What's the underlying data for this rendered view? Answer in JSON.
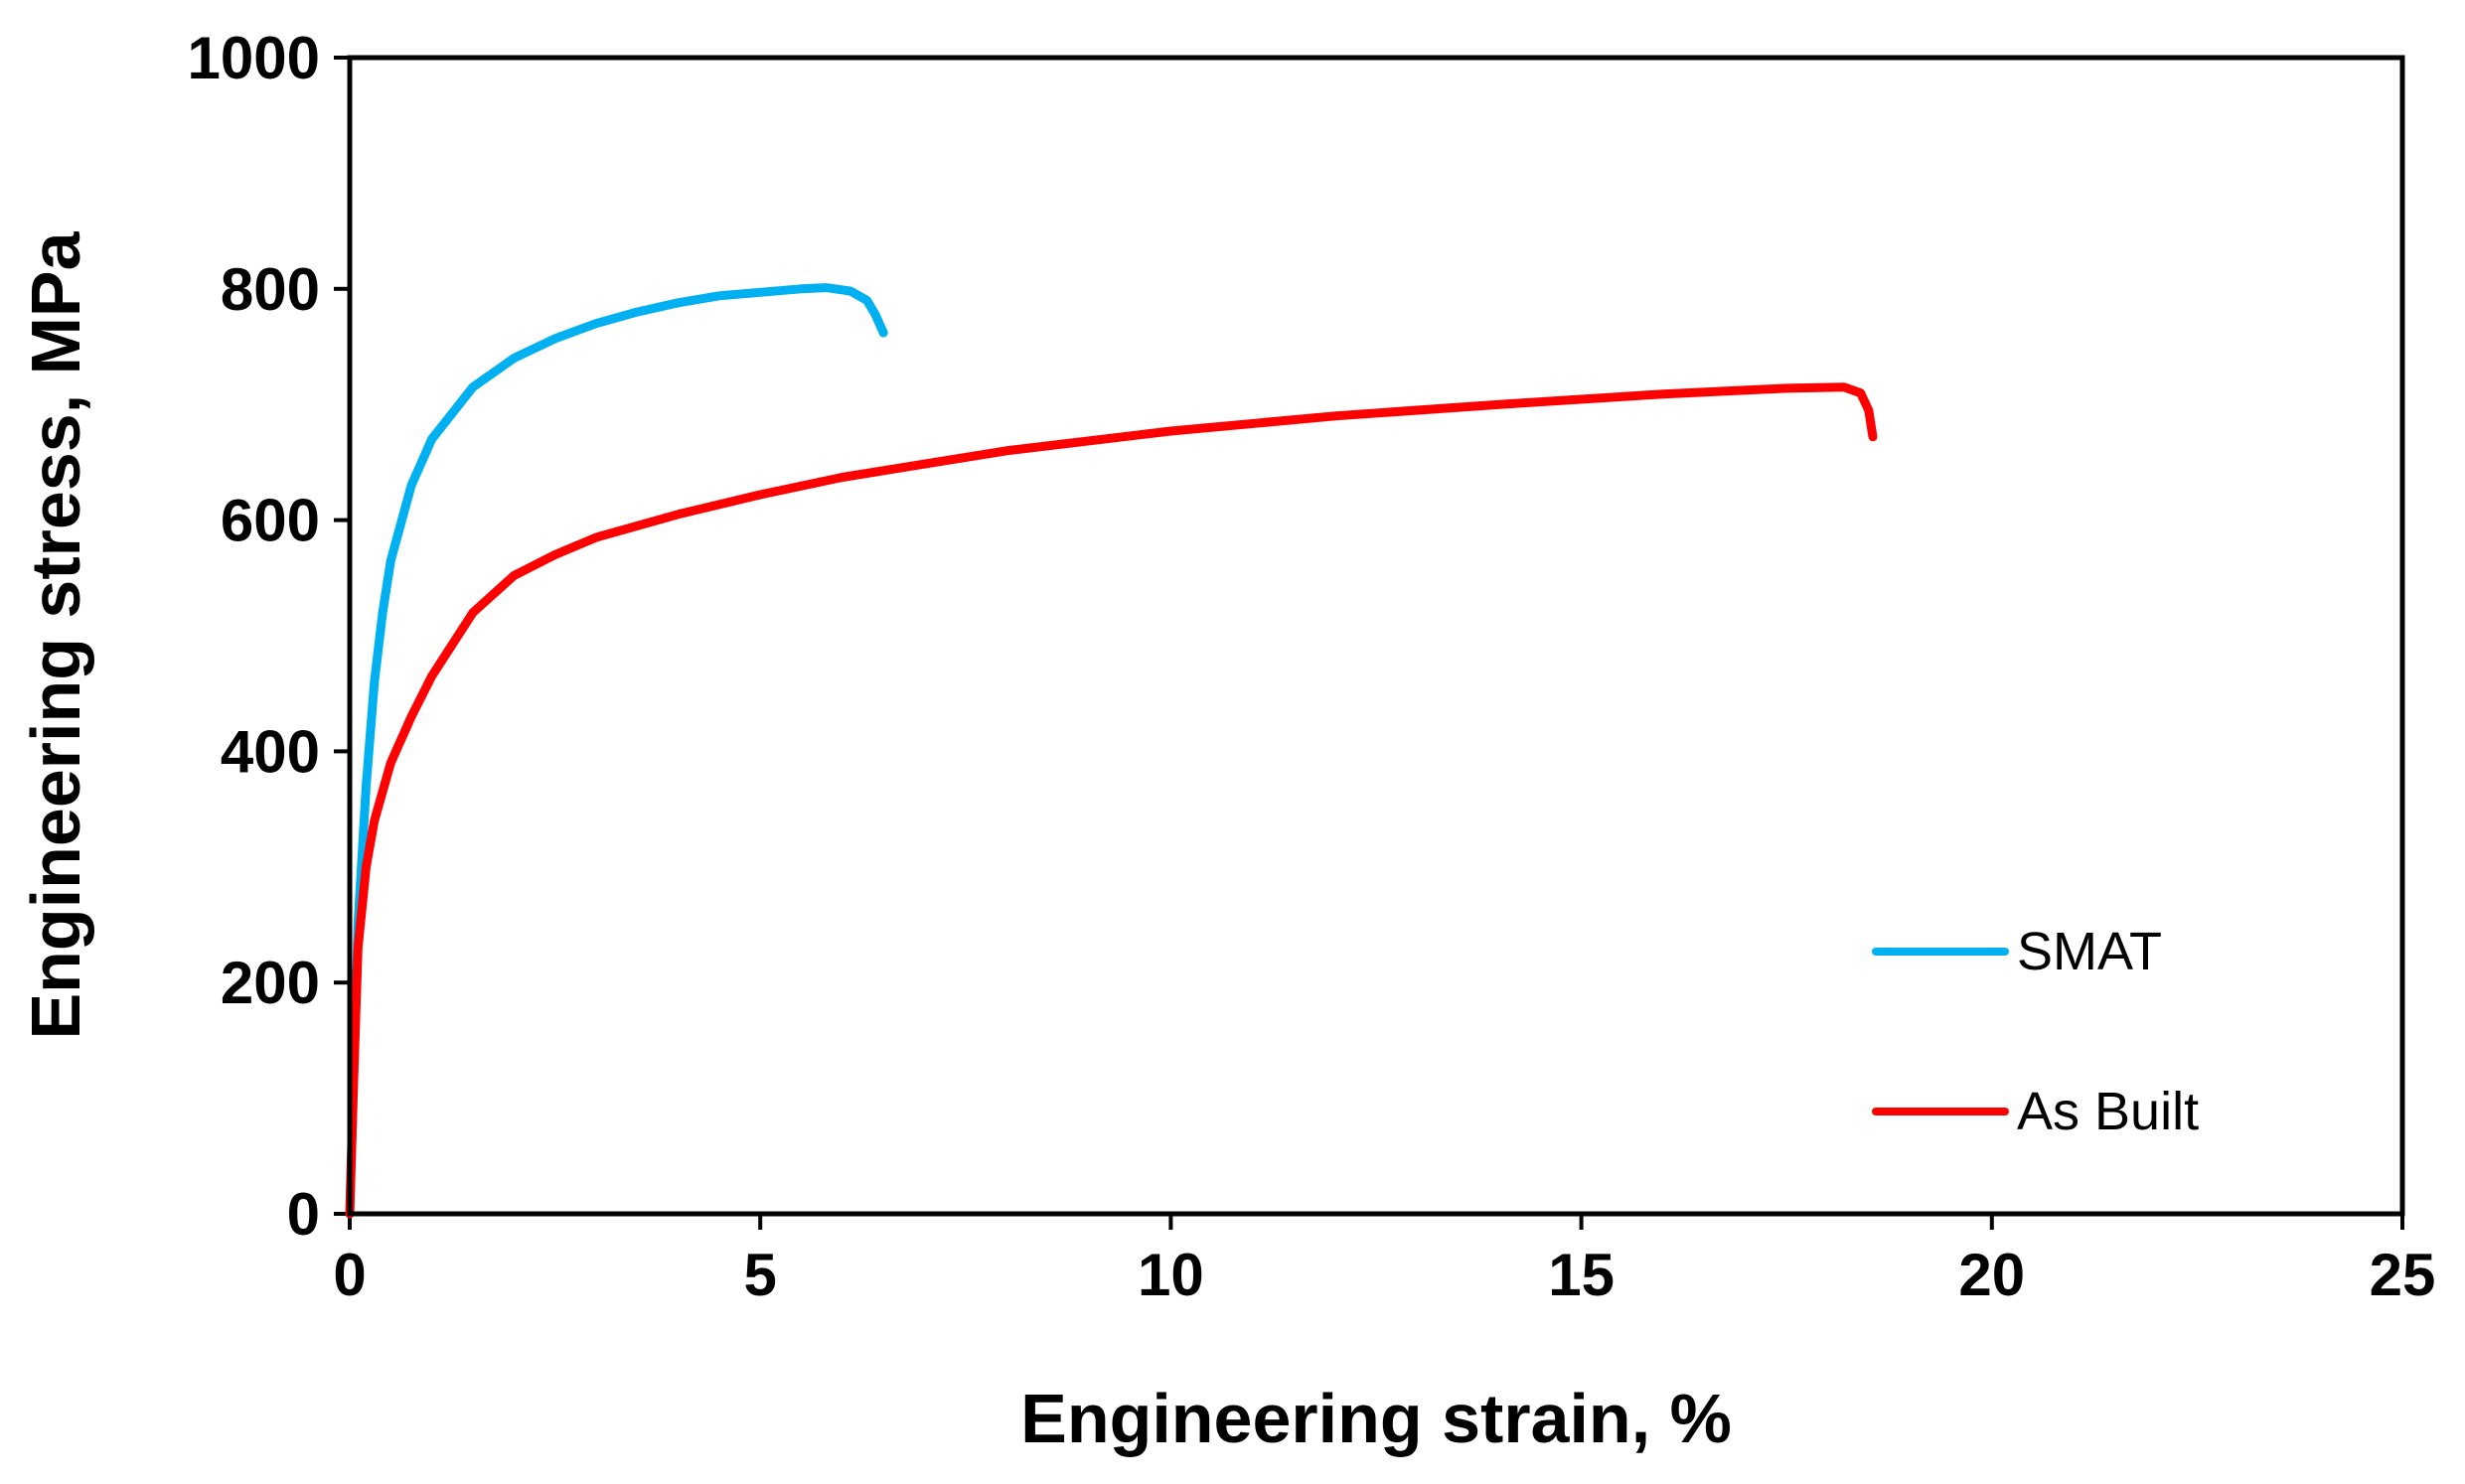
{
  "chart_data": {
    "type": "line",
    "title": "",
    "xlabel": "Engineering strain, %",
    "ylabel": "Engineering stress, MPa",
    "xlim": [
      0,
      25
    ],
    "ylim": [
      0,
      1000
    ],
    "xticks": [
      0,
      5,
      10,
      15,
      20,
      25
    ],
    "yticks": [
      0,
      200,
      400,
      600,
      800,
      1000
    ],
    "xtick_labels": [
      "0",
      "5",
      "10",
      "15",
      "20",
      "25"
    ],
    "ytick_labels": [
      "0",
      "200",
      "400",
      "600",
      "800",
      "1000"
    ],
    "grid": false,
    "legend_position": "bottom-right",
    "series": [
      {
        "name": "SMAT",
        "color": "#00b0f0",
        "points": [
          [
            0.0,
            0
          ],
          [
            0.05,
            120
          ],
          [
            0.1,
            250
          ],
          [
            0.2,
            370
          ],
          [
            0.3,
            460
          ],
          [
            0.4,
            520
          ],
          [
            0.5,
            565
          ],
          [
            0.75,
            630
          ],
          [
            1.0,
            670
          ],
          [
            1.5,
            715
          ],
          [
            2.0,
            740
          ],
          [
            2.5,
            757
          ],
          [
            3.0,
            770
          ],
          [
            3.5,
            780
          ],
          [
            4.0,
            788
          ],
          [
            4.5,
            794
          ],
          [
            5.0,
            797
          ],
          [
            5.5,
            800
          ],
          [
            5.8,
            801
          ],
          [
            6.1,
            798
          ],
          [
            6.3,
            790
          ],
          [
            6.4,
            778
          ],
          [
            6.5,
            762
          ]
        ]
      },
      {
        "name": "As Built",
        "color": "#ff0000",
        "points": [
          [
            0.0,
            0
          ],
          [
            0.05,
            120
          ],
          [
            0.1,
            230
          ],
          [
            0.2,
            300
          ],
          [
            0.3,
            340
          ],
          [
            0.5,
            390
          ],
          [
            0.75,
            430
          ],
          [
            1.0,
            465
          ],
          [
            1.5,
            520
          ],
          [
            2.0,
            552
          ],
          [
            2.5,
            570
          ],
          [
            3.0,
            585
          ],
          [
            4.0,
            605
          ],
          [
            5.0,
            622
          ],
          [
            6.0,
            637
          ],
          [
            8.0,
            660
          ],
          [
            10.0,
            677
          ],
          [
            12.0,
            690
          ],
          [
            14.0,
            700
          ],
          [
            16.0,
            709
          ],
          [
            17.5,
            714
          ],
          [
            18.2,
            715
          ],
          [
            18.4,
            710
          ],
          [
            18.5,
            695
          ],
          [
            18.55,
            672
          ]
        ]
      }
    ]
  }
}
